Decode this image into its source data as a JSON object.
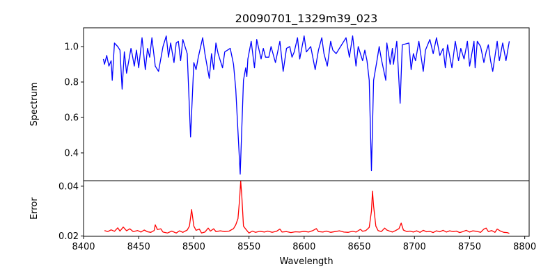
{
  "chart_data": [
    {
      "type": "line",
      "title": "20090701_1329m39_023",
      "xlabel": "",
      "ylabel": "Spectrum",
      "xlim": [
        8400,
        8804
      ],
      "ylim": [
        0.243,
        1.106
      ],
      "yticks": [
        0.4,
        0.6,
        0.8,
        1.0
      ],
      "ytick_labels": [
        "0.4",
        "0.6",
        "0.8",
        "1.0"
      ],
      "grid": false,
      "color": "#0000ff",
      "series": [
        {
          "name": "Spectrum",
          "x": [
            8418,
            8419,
            8421,
            8423,
            8425,
            8426,
            8428,
            8431,
            8433,
            8435,
            8437,
            8439,
            8443,
            8444,
            8446,
            8448,
            8450,
            8453,
            8456,
            8458,
            8460,
            8462,
            8465,
            8468,
            8472,
            8475,
            8477,
            8479,
            8482,
            8484,
            8486,
            8488,
            8490,
            8494,
            8497,
            8500,
            8502,
            8504,
            8508,
            8510,
            8514,
            8516,
            8518,
            8520,
            8522,
            8526,
            8528,
            8533,
            8536,
            8538,
            8542,
            8545,
            8547,
            8548,
            8549,
            8552,
            8555,
            8557,
            8561,
            8563,
            8565,
            8568,
            8570,
            8574,
            8578,
            8581,
            8584,
            8587,
            8589,
            8591,
            8594,
            8596,
            8600,
            8602,
            8606,
            8610,
            8613,
            8616,
            8618,
            8621,
            8624,
            8626,
            8629,
            8633,
            8638,
            8641,
            8644,
            8647,
            8649,
            8653,
            8655,
            8657,
            8659,
            8661,
            8663,
            8666,
            8668,
            8670,
            8674,
            8675,
            8678,
            8680,
            8681,
            8684,
            8687,
            8689,
            8695,
            8697,
            8699,
            8701,
            8704,
            8708,
            8710,
            8714,
            8717,
            8720,
            8723,
            8726,
            8728,
            8730,
            8734,
            8737,
            8740,
            8742,
            8745,
            8748,
            8750,
            8754,
            8755,
            8757,
            8760,
            8763,
            8765,
            8767,
            8769,
            8771,
            8775,
            8777,
            8780,
            8783,
            8786
          ],
          "y": [
            0.93,
            0.9,
            0.95,
            0.89,
            0.92,
            0.81,
            1.02,
            1.0,
            0.98,
            0.76,
            0.97,
            0.85,
            0.99,
            0.96,
            0.89,
            0.98,
            0.88,
            1.05,
            0.87,
            0.99,
            0.94,
            1.05,
            0.89,
            0.86,
            1.0,
            1.06,
            0.94,
            1.02,
            0.91,
            1.02,
            1.03,
            0.92,
            1.04,
            0.96,
            0.49,
            0.91,
            0.87,
            0.94,
            1.05,
            0.96,
            0.82,
            0.96,
            0.87,
            1.02,
            0.96,
            0.88,
            0.97,
            0.99,
            0.9,
            0.76,
            0.28,
            0.81,
            0.88,
            0.83,
            0.93,
            1.03,
            0.88,
            1.04,
            0.93,
            0.99,
            0.94,
            0.94,
            1.0,
            0.91,
            1.03,
            0.86,
            0.99,
            1.0,
            0.94,
            0.97,
            1.05,
            0.93,
            1.06,
            0.97,
            1.0,
            0.87,
            0.98,
            1.05,
            0.96,
            0.89,
            1.03,
            0.98,
            0.96,
            1.0,
            1.05,
            0.94,
            1.06,
            0.89,
            1.0,
            0.92,
            0.98,
            0.92,
            0.81,
            0.3,
            0.81,
            0.92,
            1.0,
            0.93,
            0.81,
            1.02,
            0.9,
            0.99,
            0.9,
            1.03,
            0.68,
            1.01,
            1.02,
            0.87,
            0.96,
            0.92,
            1.03,
            0.86,
            0.98,
            1.04,
            0.96,
            1.05,
            0.95,
            0.99,
            0.88,
            1.01,
            0.88,
            1.03,
            0.92,
            0.99,
            0.93,
            1.03,
            0.89,
            1.03,
            0.88,
            1.03,
            1.0,
            0.91,
            0.97,
            1.01,
            0.92,
            0.86,
            1.03,
            0.92,
            1.02,
            0.92,
            1.03
          ]
        }
      ]
    },
    {
      "type": "line",
      "title": "",
      "xlabel": "Wavelength",
      "ylabel": "Error",
      "xlim": [
        8400,
        8804
      ],
      "ylim": [
        0.0199,
        0.0422
      ],
      "xticks": [
        8400,
        8450,
        8500,
        8550,
        8600,
        8650,
        8700,
        8750,
        8800
      ],
      "xtick_labels": [
        "8400",
        "8450",
        "8500",
        "8550",
        "8600",
        "8650",
        "8700",
        "8750",
        "8800"
      ],
      "yticks": [
        0.02,
        0.04
      ],
      "ytick_labels": [
        "0.02",
        "0.04"
      ],
      "grid": false,
      "color": "#ff0000",
      "series": [
        {
          "name": "Error",
          "x": [
            8419,
            8422,
            8425,
            8428,
            8431,
            8433,
            8436,
            8439,
            8442,
            8445,
            8449,
            8452,
            8455,
            8458,
            8461,
            8464,
            8465,
            8467,
            8470,
            8472,
            8476,
            8480,
            8484,
            8487,
            8490,
            8494,
            8496,
            8498,
            8500,
            8502,
            8505,
            8507,
            8510,
            8513,
            8515,
            8518,
            8520,
            8524,
            8528,
            8532,
            8536,
            8538,
            8540,
            8541.5,
            8542.5,
            8543.5,
            8545,
            8547,
            8550,
            8553,
            8556,
            8560,
            8564,
            8567,
            8571,
            8575,
            8578,
            8580,
            8584,
            8588,
            8592,
            8596,
            8600,
            8604,
            8608,
            8611,
            8613,
            8617,
            8620,
            8624,
            8628,
            8632,
            8636,
            8640,
            8644,
            8647,
            8651,
            8653,
            8656,
            8659,
            8661,
            8662,
            8663,
            8665,
            8667,
            8670,
            8673,
            8675,
            8678,
            8680,
            8683,
            8686,
            8688,
            8690,
            8693,
            8696,
            8699,
            8702,
            8705,
            8708,
            8711,
            8714,
            8717,
            8720,
            8723,
            8726,
            8729,
            8732,
            8735,
            8738,
            8741,
            8744,
            8747,
            8750,
            8753,
            8756,
            8760,
            8763,
            8765,
            8767,
            8770,
            8773,
            8775,
            8778,
            8781,
            8784,
            8786
          ],
          "y": [
            0.0222,
            0.0218,
            0.0225,
            0.0219,
            0.0233,
            0.022,
            0.0236,
            0.0221,
            0.0229,
            0.0218,
            0.0222,
            0.0216,
            0.0224,
            0.0217,
            0.0215,
            0.0222,
            0.0245,
            0.0226,
            0.0229,
            0.0216,
            0.0212,
            0.022,
            0.0212,
            0.0221,
            0.0215,
            0.0224,
            0.024,
            0.0306,
            0.024,
            0.0223,
            0.0228,
            0.0212,
            0.0216,
            0.0232,
            0.022,
            0.0229,
            0.0218,
            0.0221,
            0.0218,
            0.022,
            0.023,
            0.0245,
            0.027,
            0.035,
            0.0421,
            0.036,
            0.024,
            0.0228,
            0.0212,
            0.022,
            0.0215,
            0.0219,
            0.0216,
            0.022,
            0.0215,
            0.0219,
            0.0228,
            0.0216,
            0.0218,
            0.0214,
            0.0217,
            0.0216,
            0.0219,
            0.0216,
            0.0222,
            0.023,
            0.0218,
            0.0216,
            0.022,
            0.0215,
            0.0218,
            0.0221,
            0.0216,
            0.0215,
            0.0219,
            0.0216,
            0.0227,
            0.0219,
            0.0222,
            0.0235,
            0.03,
            0.038,
            0.032,
            0.024,
            0.0222,
            0.0218,
            0.0232,
            0.0224,
            0.0219,
            0.0216,
            0.0222,
            0.023,
            0.0252,
            0.0224,
            0.0218,
            0.022,
            0.0216,
            0.0221,
            0.0215,
            0.0223,
            0.0217,
            0.0219,
            0.0214,
            0.0221,
            0.0217,
            0.0223,
            0.0216,
            0.0221,
            0.0218,
            0.022,
            0.0214,
            0.0218,
            0.0223,
            0.0216,
            0.0221,
            0.0219,
            0.0215,
            0.0228,
            0.0232,
            0.0218,
            0.0222,
            0.0215,
            0.0228,
            0.022,
            0.0215,
            0.0214,
            0.0211
          ]
        }
      ]
    }
  ]
}
